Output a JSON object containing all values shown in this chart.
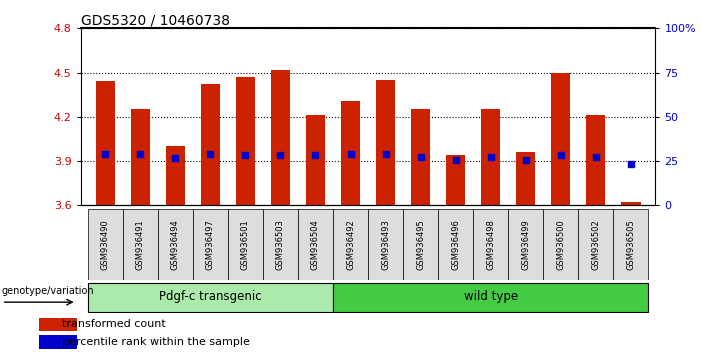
{
  "title": "GDS5320 / 10460738",
  "categories": [
    "GSM936490",
    "GSM936491",
    "GSM936494",
    "GSM936497",
    "GSM936501",
    "GSM936503",
    "GSM936504",
    "GSM936492",
    "GSM936493",
    "GSM936495",
    "GSM936496",
    "GSM936498",
    "GSM936499",
    "GSM936500",
    "GSM936502",
    "GSM936505"
  ],
  "bar_values": [
    4.44,
    4.25,
    4.0,
    4.42,
    4.47,
    4.52,
    4.21,
    4.31,
    4.45,
    4.25,
    3.94,
    4.25,
    3.96,
    4.5,
    4.21,
    3.62
  ],
  "bar_bottom": 3.6,
  "blue_dot_values": [
    3.95,
    3.95,
    3.92,
    3.95,
    3.94,
    3.94,
    3.94,
    3.95,
    3.95,
    3.93,
    3.91,
    3.93,
    3.91,
    3.94,
    3.93,
    3.88
  ],
  "bar_color": "#cc2200",
  "dot_color": "#0000cc",
  "ylim": [
    3.6,
    4.8
  ],
  "y_left_ticks": [
    3.6,
    3.9,
    4.2,
    4.5,
    4.8
  ],
  "y_right_ticks": [
    0,
    25,
    50,
    75,
    100
  ],
  "group1_label": "Pdgf-c transgenic",
  "group2_label": "wild type",
  "group1_count": 7,
  "group2_count": 9,
  "genotype_label": "genotype/variation",
  "legend_bar_label": "transformed count",
  "legend_dot_label": "percentile rank within the sample",
  "group1_color": "#aaeaaa",
  "group2_color": "#44cc44",
  "tick_label_color_left": "#cc0000",
  "tick_label_color_right": "#0000cc",
  "title_fontsize": 10,
  "bar_width": 0.55,
  "xticklabel_bg": "#dddddd"
}
